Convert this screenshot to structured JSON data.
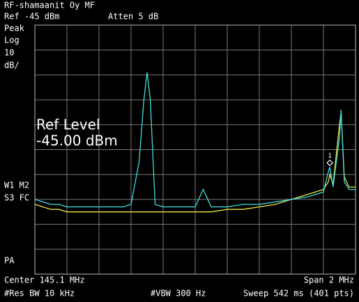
{
  "header": {
    "title": "RF-shamaanit Oy MF",
    "ref": "Ref -45 dBm",
    "atten": "Atten 5 dB"
  },
  "side": {
    "detector": "Peak",
    "scale": "Log",
    "per_div": "10",
    "unit": "dB/",
    "traces1": "W1 M2",
    "traces2": "S3 FC",
    "bottom": "PA"
  },
  "overlay": {
    "line1": "Ref Level",
    "line2": "-45.00 dBm"
  },
  "footer": {
    "center": "Center 145.1 MHz",
    "span": "Span 2 MHz",
    "rbw": "#Res BW 10 kHz",
    "vbw": "#VBW 300 Hz",
    "sweep": "Sweep 542 ms (401 pts)"
  },
  "chart_data": {
    "type": "line",
    "x": [
      144.1,
      144.15,
      144.2,
      144.25,
      144.3,
      144.35,
      144.4,
      144.45,
      144.5,
      144.55,
      144.6,
      144.65,
      144.7,
      144.75,
      144.78,
      144.8,
      144.82,
      144.85,
      144.9,
      144.95,
      145.0,
      145.05,
      145.1,
      145.15,
      145.2,
      145.3,
      145.4,
      145.5,
      145.6,
      145.7,
      145.8,
      145.85,
      145.9,
      145.93,
      145.94,
      145.96,
      146.0,
      146.01,
      146.03,
      146.06,
      146.1
    ],
    "series": [
      {
        "name": "W1",
        "color": "#40e0e0",
        "values": [
          -115,
          -116,
          -117,
          -117,
          -118,
          -118,
          -118,
          -118,
          -118,
          -118,
          -118,
          -118,
          -117,
          -100,
          -75,
          -64,
          -75,
          -117,
          -118,
          -118,
          -118,
          -118,
          -118,
          -111,
          -118,
          -118,
          -117,
          -117,
          -116,
          -115,
          -114,
          -113,
          -112,
          -104,
          -102,
          -110,
          -90,
          -79,
          -108,
          -111,
          -111
        ]
      },
      {
        "name": "M2",
        "color": "#e8e840",
        "values": [
          -117,
          -118,
          -119,
          -119,
          -120,
          -120,
          -120,
          -120,
          -120,
          -120,
          -120,
          -120,
          -120,
          -120,
          -120,
          -120,
          -120,
          -120,
          -120,
          -120,
          -120,
          -120,
          -120,
          -120,
          -120,
          -119,
          -119,
          -118,
          -117,
          -115,
          -113,
          -112,
          -111,
          -108,
          -105,
          -109,
          -85,
          -80,
          -106,
          -110,
          -110
        ]
      }
    ],
    "marker": {
      "label": "1",
      "index": 34
    },
    "xlim": [
      144.1,
      146.1
    ],
    "ylim": [
      -145,
      -45
    ],
    "xticks": [
      144.1,
      144.3,
      144.5,
      144.7,
      144.9,
      145.1,
      145.3,
      145.5,
      145.7,
      145.9,
      146.1
    ],
    "yticks": [
      -145,
      -135,
      -125,
      -115,
      -105,
      -95,
      -85,
      -75,
      -65,
      -55,
      -45
    ],
    "grid": true
  }
}
